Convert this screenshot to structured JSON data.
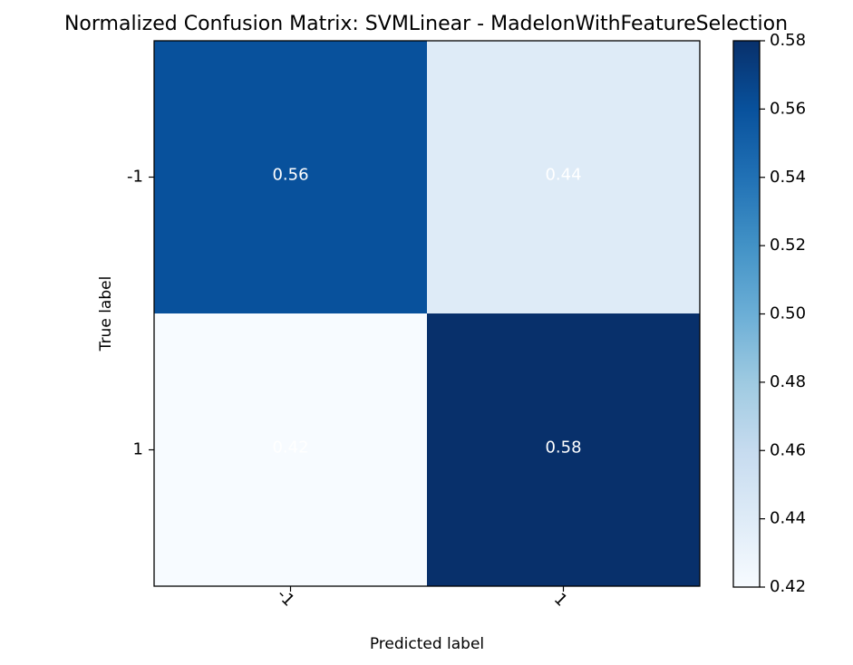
{
  "chart_data": {
    "type": "heatmap",
    "title": "Normalized Confusion Matrix: SVMLinear - MadelonWithFeatureSelection",
    "xlabel": "Predicted label",
    "ylabel": "True label",
    "x_categories": [
      "-1",
      "1"
    ],
    "y_categories": [
      "-1",
      "1"
    ],
    "values": [
      [
        0.56,
        0.44
      ],
      [
        0.42,
        0.58
      ]
    ],
    "cell_labels": [
      [
        "0.56",
        "0.44"
      ],
      [
        "0.42",
        "0.58"
      ]
    ],
    "colormap": "Blues",
    "colorbar": {
      "range": [
        0.42,
        0.58
      ],
      "ticks": [
        0.42,
        0.44,
        0.46,
        0.48,
        0.5,
        0.52,
        0.54,
        0.56,
        0.58
      ],
      "tick_labels": [
        "0.42",
        "0.44",
        "0.46",
        "0.48",
        "0.50",
        "0.52",
        "0.54",
        "0.56",
        "0.58"
      ]
    },
    "colors": {
      "cell_text": "#ffffff",
      "colormap_stops": [
        "#f7fbff",
        "#deebf7",
        "#c6dbef",
        "#9ecae1",
        "#6baed6",
        "#4292c6",
        "#2171b5",
        "#08519c",
        "#08306b"
      ]
    },
    "x_tick_rotation_deg": 45,
    "grid": false
  }
}
